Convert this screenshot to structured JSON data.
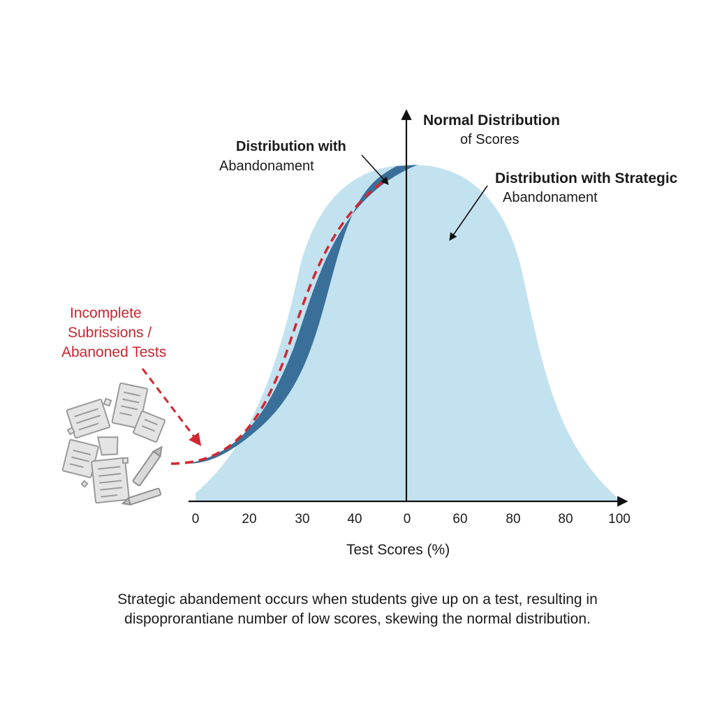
{
  "labels": {
    "normal_title_line1": "Normal Distribution",
    "normal_title_line2": "of Scores",
    "abandon_title_line1": "Distribution with",
    "abandon_title_line2": "Abandonament",
    "strategic_title_line1": "Distribution with Strategic",
    "strategic_title_line2": "Abandonament",
    "incomplete_line1": "Incomplete",
    "incomplete_line2": "Subrissions /",
    "incomplete_line3": "Abanoned Tests"
  },
  "axis": {
    "ticks": [
      "0",
      "20",
      "30",
      "40",
      "0",
      "60",
      "80",
      "80",
      "100"
    ],
    "xlabel": "Test Scores (%)"
  },
  "caption": {
    "line1": "Strategic abandement occurs when students give up on a test, resulting in",
    "line2": "dispoprorantiane number of low scores, skewing the normal distribution."
  },
  "colors": {
    "curve_fill": "#c2e2ef",
    "abandon_band": "#3a6f99",
    "dashed_line": "#d32630",
    "axis": "#111111",
    "annotation_red": "#c8262e"
  },
  "icons": [
    "scattered-papers-icon",
    "pencil-icon"
  ]
}
